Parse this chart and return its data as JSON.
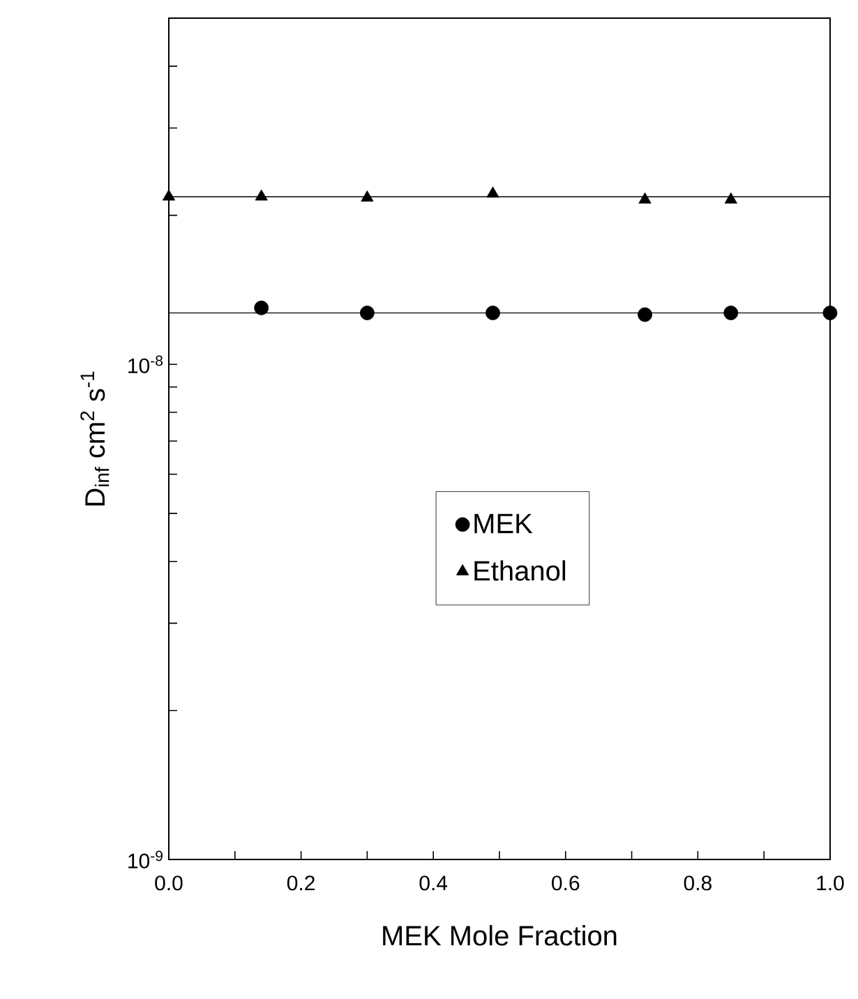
{
  "chart_data": {
    "type": "scatter",
    "xlabel": "MEK Mole Fraction",
    "ylabel": "D$_{inf}$ cm$^{2}$ s$^{-1}$",
    "log": "y",
    "xlim": [
      0,
      1
    ],
    "ylim": [
      1e-09,
      5e-08
    ],
    "xticks": [
      {
        "value": 0,
        "label": "0.0"
      },
      {
        "value": 0.1,
        "label": null
      },
      {
        "value": 0.2,
        "label": "0.2"
      },
      {
        "value": 0.3,
        "label": null
      },
      {
        "value": 0.4,
        "label": "0.4"
      },
      {
        "value": 0.5,
        "label": null
      },
      {
        "value": 0.6,
        "label": "0.6"
      },
      {
        "value": 0.7,
        "label": null
      },
      {
        "value": 0.8,
        "label": "0.8"
      },
      {
        "value": 0.9,
        "label": null
      },
      {
        "value": 1,
        "label": "1.0"
      }
    ],
    "yticks": [
      {
        "value": 1e-09,
        "label": "10$^{-9}$"
      },
      {
        "value": 2e-09,
        "label": null
      },
      {
        "value": 3e-09,
        "label": null
      },
      {
        "value": 4e-09,
        "label": null
      },
      {
        "value": 5e-09,
        "label": null
      },
      {
        "value": 6e-09,
        "label": null
      },
      {
        "value": 7e-09,
        "label": null
      },
      {
        "value": 8e-09,
        "label": null
      },
      {
        "value": 9e-09,
        "label": null
      },
      {
        "value": 1e-08,
        "label": "10$^{-8}$"
      },
      {
        "value": 2e-08,
        "label": null
      },
      {
        "value": 3e-08,
        "label": null
      },
      {
        "value": 4e-08,
        "label": null
      }
    ],
    "legend": "center",
    "grid": false,
    "series": [
      {
        "name": "MEK",
        "marker": "circle",
        "color": "#000000",
        "x": [
          0.14,
          0.3,
          0.49,
          0.72,
          0.85,
          1.0
        ],
        "values": [
          1.3e-08,
          1.27e-08,
          1.27e-08,
          1.26e-08,
          1.27e-08,
          1.27e-08
        ]
      },
      {
        "name": "Ethanol",
        "marker": "triangle",
        "color": "#000000",
        "x": [
          0,
          0.14,
          0.3,
          0.49,
          0.72,
          0.85
        ],
        "values": [
          2.18e-08,
          2.18e-08,
          2.17e-08,
          2.21e-08,
          2.15e-08,
          2.15e-08
        ]
      },
      {
        "type": "line",
        "marker": "none",
        "color": "#000000",
        "x": [
          0,
          1
        ],
        "values": [
          1.27e-08,
          1.27e-08
        ]
      },
      {
        "type": "line",
        "marker": "none",
        "color": "#000000",
        "x": [
          0,
          1
        ],
        "values": [
          2.18e-08,
          2.18e-08
        ]
      }
    ]
  }
}
